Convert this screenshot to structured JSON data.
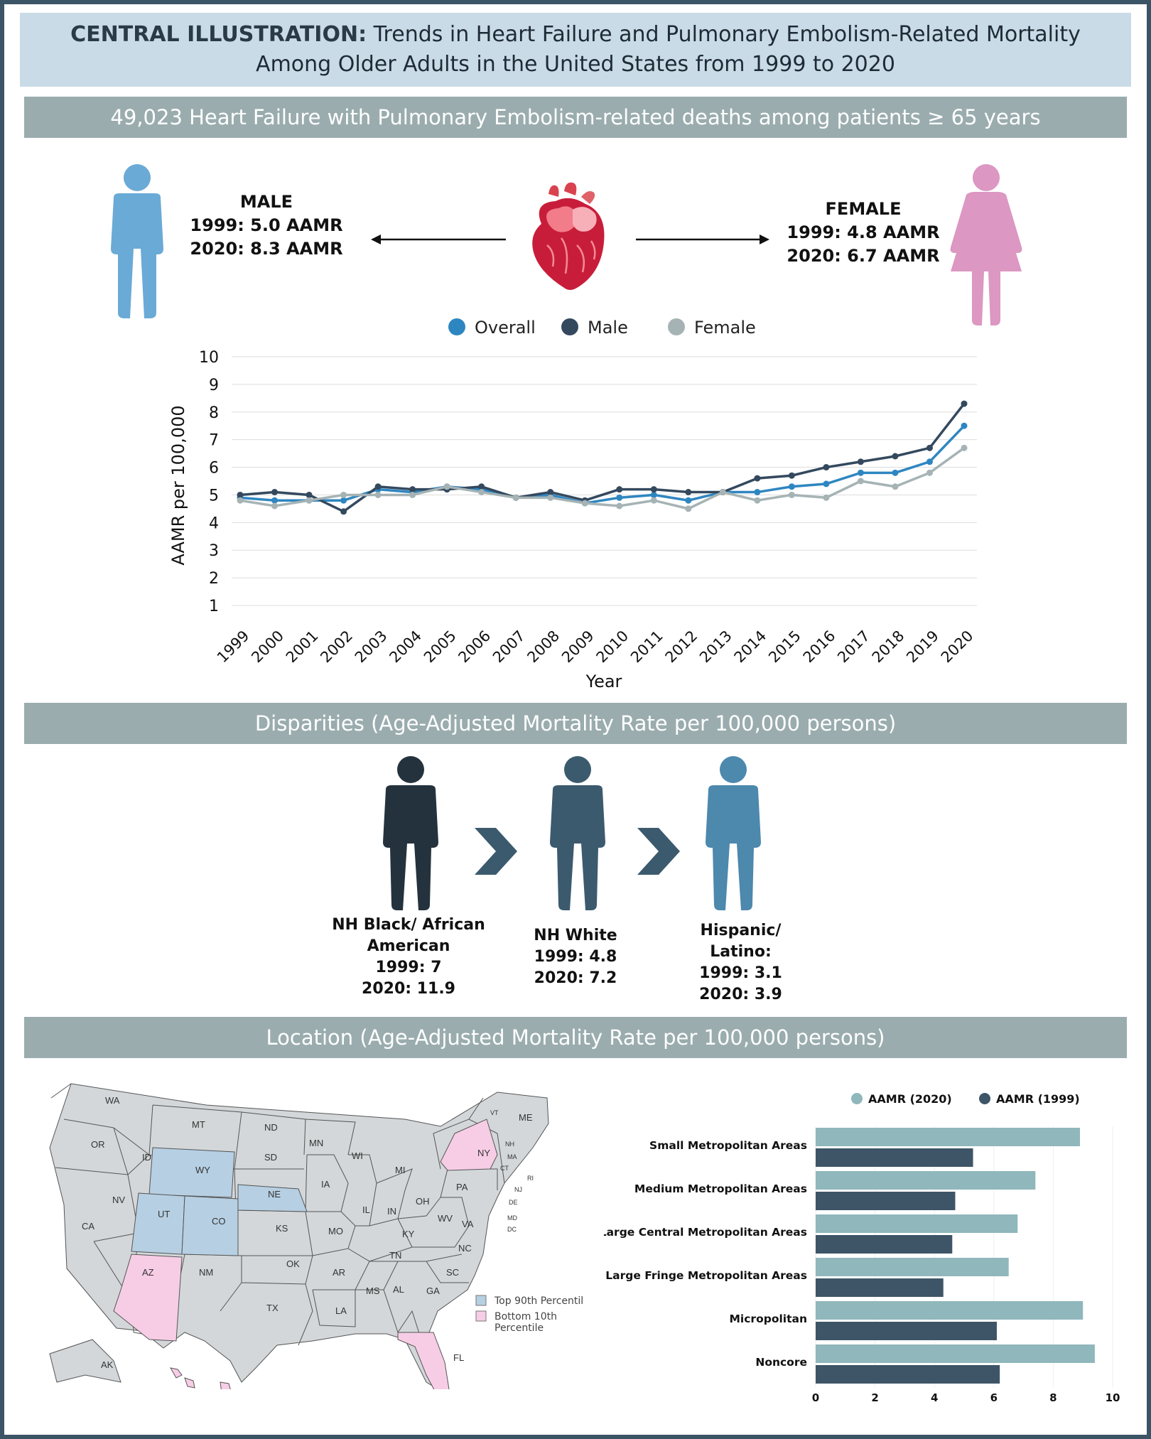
{
  "title": {
    "bold": "CENTRAL ILLUSTRATION:",
    "rest": "Trends in Heart Failure and Pulmonary Embolism-Related Mortality Among Older Adults in the United States from 1999 to 2020"
  },
  "banner_total": "49,023 Heart Failure with Pulmonary Embolism-related deaths among patients ≥ 65 years",
  "male": {
    "label": "MALE",
    "y1999": "1999: 5.0 AAMR",
    "y2020": "2020: 8.3 AAMR"
  },
  "female": {
    "label": "FEMALE",
    "y1999": "1999: 4.8 AAMR",
    "y2020": "2020: 6.7 AAMR"
  },
  "colors": {
    "overall": "#2e86c1",
    "male": "#34495e",
    "female": "#a6b3b5",
    "male_icon": "#6aaad6",
    "female_icon": "#dc97c2",
    "aamr2020": "#8fb7bc",
    "aamr1999": "#3e5568",
    "top90": "#b6cfe3",
    "bottom10": "#f7cde6",
    "map_state": "#d3d7d9"
  },
  "chart_data": [
    {
      "type": "line",
      "title": "",
      "xlabel": "Year",
      "ylabel": "AAMR per 100,000",
      "ylim": [
        1,
        10
      ],
      "yticks": [
        "1",
        "2",
        "3",
        "4",
        "5",
        "6",
        "7",
        "8",
        "9",
        "10"
      ],
      "categories": [
        "1999",
        "2000",
        "2001",
        "2002",
        "2003",
        "2004",
        "2005",
        "2006",
        "2007",
        "2008",
        "2009",
        "2010",
        "2011",
        "2012",
        "2013",
        "2014",
        "2015",
        "2016",
        "2017",
        "2018",
        "2019",
        "2020"
      ],
      "legend_position": "top",
      "series": [
        {
          "name": "Overall",
          "color_key": "overall",
          "values": [
            4.9,
            4.8,
            4.8,
            4.8,
            5.2,
            5.1,
            5.3,
            5.2,
            4.9,
            5.0,
            4.7,
            4.9,
            5.0,
            4.8,
            5.1,
            5.1,
            5.3,
            5.4,
            5.8,
            5.8,
            6.2,
            7.5
          ]
        },
        {
          "name": "Male",
          "color_key": "male",
          "values": [
            5.0,
            5.1,
            5.0,
            4.4,
            5.3,
            5.2,
            5.2,
            5.3,
            4.9,
            5.1,
            4.8,
            5.2,
            5.2,
            5.1,
            5.1,
            5.6,
            5.7,
            6.0,
            6.2,
            6.4,
            6.7,
            8.3
          ]
        },
        {
          "name": "Female",
          "color_key": "female",
          "values": [
            4.8,
            4.6,
            4.8,
            5.0,
            5.0,
            5.0,
            5.3,
            5.1,
            4.9,
            4.9,
            4.7,
            4.6,
            4.8,
            4.5,
            5.1,
            4.8,
            5.0,
            4.9,
            5.5,
            5.3,
            5.8,
            6.7
          ]
        }
      ]
    },
    {
      "type": "bar",
      "orientation": "horizontal",
      "categories": [
        "Small Metropolitan Areas",
        "Medium Metropolitan Areas",
        "Large Central Metropolitan Areas",
        "Large Fringe Metropolitan Areas",
        "Micropolitan",
        "Noncore"
      ],
      "xlim": [
        0,
        10
      ],
      "xticks": [
        "0",
        "2",
        "4",
        "6",
        "8",
        "10"
      ],
      "legend_position": "top",
      "series": [
        {
          "name": "AAMR (2020)",
          "color_key": "aamr2020",
          "values": [
            8.9,
            7.4,
            6.8,
            6.5,
            9.0,
            9.4
          ]
        },
        {
          "name": "AAMR (1999)",
          "color_key": "aamr1999",
          "values": [
            5.3,
            4.7,
            4.6,
            4.3,
            6.1,
            6.2
          ]
        }
      ]
    }
  ],
  "disparities_header": "Disparities (Age-Adjusted Mortality Rate per 100,000 persons)",
  "ethnicity": [
    {
      "line1": "NH Black/ African",
      "line2": "American",
      "y1999": "1999: 7",
      "y2020": "2020: 11.9",
      "color": "#24323d"
    },
    {
      "line1": "NH White",
      "line2": "",
      "y1999": "1999: 4.8",
      "y2020": "2020: 7.2",
      "color": "#3b5a6e"
    },
    {
      "line1": "Hispanic/",
      "line2": "Latino:",
      "y1999": "1999: 3.1",
      "y2020": "2020: 3.9",
      "color": "#4d88ad"
    }
  ],
  "location_header": "Location (Age-Adjusted Mortality Rate per 100,000 persons)",
  "map": {
    "legend_top": "Top 90th Percentile",
    "legend_bottom_1": "Bottom 10th",
    "legend_bottom_2": "Percentile",
    "states": {
      "WA": "WA",
      "OR": "OR",
      "CA": "CA",
      "ID": "ID",
      "NV": "NV",
      "MT": "MT",
      "WY": "WY",
      "UT": "UT",
      "AZ": "AZ",
      "CO": "CO",
      "NM": "NM",
      "ND": "ND",
      "SD": "SD",
      "NE": "NE",
      "KS": "KS",
      "OK": "OK",
      "TX": "TX",
      "MN": "MN",
      "IA": "IA",
      "MO": "MO",
      "AR": "AR",
      "LA": "LA",
      "WI": "WI",
      "IL": "IL",
      "MI": "MI",
      "IN": "IN",
      "OH": "OH",
      "KY": "KY",
      "TN": "TN",
      "MS": "MS",
      "AL": "AL",
      "GA": "GA",
      "FL": "FL",
      "SC": "SC",
      "NC": "NC",
      "VA": "VA",
      "WV": "WV",
      "PA": "PA",
      "NY": "NY",
      "ME": "ME",
      "VT": "VT",
      "NH": "NH",
      "MA": "MA",
      "CT": "CT",
      "RI": "RI",
      "NJ": "NJ",
      "DE": "DE",
      "MD": "MD",
      "DC": "DC",
      "AK": "AK",
      "HI": "HI"
    }
  }
}
